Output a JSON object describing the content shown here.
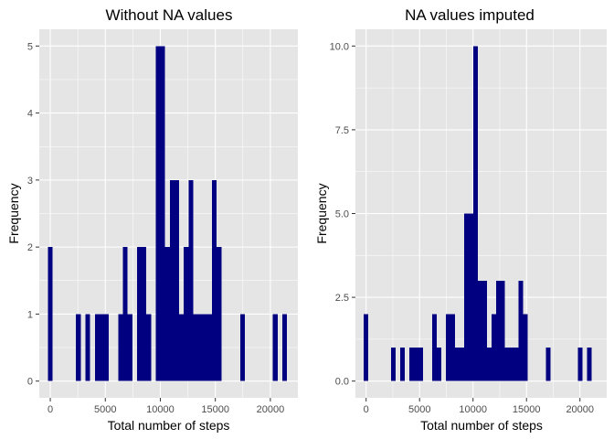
{
  "colors": {
    "panel_background": "#e5e5e5",
    "grid_major": "#ffffff",
    "bar_fill": "#000080",
    "tick_text": "#4d4d4d",
    "tick_mark": "#333333"
  },
  "chart_data": [
    {
      "type": "bar",
      "title": "Without NA values",
      "xlabel": "Total number of steps",
      "ylabel": "Frequency",
      "xlim": [
        -1000,
        22500
      ],
      "ylim": [
        -0.25,
        5.25
      ],
      "xticks": [
        0,
        5000,
        10000,
        15000,
        20000
      ],
      "xtick_labels": [
        "0",
        "5000",
        "10000",
        "15000",
        "20000"
      ],
      "yticks": [
        0,
        1,
        2,
        3,
        4,
        5
      ],
      "ytick_labels": [
        "0",
        "1",
        "2",
        "3",
        "4",
        "5"
      ],
      "bin_width": 426,
      "bins": [
        {
          "x": 0,
          "count": 2
        },
        {
          "x": 2555,
          "count": 1
        },
        {
          "x": 3407,
          "count": 1
        },
        {
          "x": 4259,
          "count": 1
        },
        {
          "x": 4685,
          "count": 1
        },
        {
          "x": 5111,
          "count": 1
        },
        {
          "x": 6389,
          "count": 1
        },
        {
          "x": 6815,
          "count": 2
        },
        {
          "x": 7241,
          "count": 1
        },
        {
          "x": 8093,
          "count": 2
        },
        {
          "x": 8519,
          "count": 2
        },
        {
          "x": 8945,
          "count": 1
        },
        {
          "x": 9797,
          "count": 5
        },
        {
          "x": 10223,
          "count": 5
        },
        {
          "x": 10649,
          "count": 2
        },
        {
          "x": 11075,
          "count": 3
        },
        {
          "x": 11501,
          "count": 3
        },
        {
          "x": 11927,
          "count": 1
        },
        {
          "x": 12353,
          "count": 2
        },
        {
          "x": 12779,
          "count": 3
        },
        {
          "x": 13205,
          "count": 1
        },
        {
          "x": 13631,
          "count": 1
        },
        {
          "x": 14057,
          "count": 1
        },
        {
          "x": 14483,
          "count": 1
        },
        {
          "x": 14909,
          "count": 3
        },
        {
          "x": 15335,
          "count": 2
        },
        {
          "x": 17465,
          "count": 1
        },
        {
          "x": 20447,
          "count": 1
        },
        {
          "x": 21299,
          "count": 1
        }
      ]
    },
    {
      "type": "bar",
      "title": "NA values imputed",
      "xlabel": "Total number of steps",
      "ylabel": "Frequency",
      "xlim": [
        -1000,
        22500
      ],
      "ylim": [
        -0.5,
        10.5
      ],
      "xticks": [
        0,
        5000,
        10000,
        15000,
        20000
      ],
      "xtick_labels": [
        "0",
        "5000",
        "10000",
        "15000",
        "20000"
      ],
      "yticks": [
        0,
        2.5,
        5,
        7.5,
        10
      ],
      "ytick_labels": [
        "0.0",
        "2.5",
        "5.0",
        "7.5",
        "10.0"
      ],
      "bin_width": 426,
      "bins": [
        {
          "x": 0,
          "count": 2
        },
        {
          "x": 2555,
          "count": 1
        },
        {
          "x": 3407,
          "count": 1
        },
        {
          "x": 4259,
          "count": 1
        },
        {
          "x": 4685,
          "count": 1
        },
        {
          "x": 5111,
          "count": 1
        },
        {
          "x": 6389,
          "count": 2
        },
        {
          "x": 6815,
          "count": 1
        },
        {
          "x": 7667,
          "count": 2
        },
        {
          "x": 8093,
          "count": 2
        },
        {
          "x": 8519,
          "count": 1
        },
        {
          "x": 8945,
          "count": 1
        },
        {
          "x": 9371,
          "count": 5
        },
        {
          "x": 9797,
          "count": 5
        },
        {
          "x": 10223,
          "count": 10
        },
        {
          "x": 10649,
          "count": 3
        },
        {
          "x": 11075,
          "count": 3
        },
        {
          "x": 11501,
          "count": 1
        },
        {
          "x": 11927,
          "count": 2
        },
        {
          "x": 12353,
          "count": 3
        },
        {
          "x": 12779,
          "count": 3
        },
        {
          "x": 13205,
          "count": 1
        },
        {
          "x": 13631,
          "count": 1
        },
        {
          "x": 14057,
          "count": 1
        },
        {
          "x": 14483,
          "count": 3
        },
        {
          "x": 14909,
          "count": 2
        },
        {
          "x": 17039,
          "count": 1
        },
        {
          "x": 20021,
          "count": 1
        },
        {
          "x": 20873,
          "count": 1
        }
      ]
    }
  ]
}
